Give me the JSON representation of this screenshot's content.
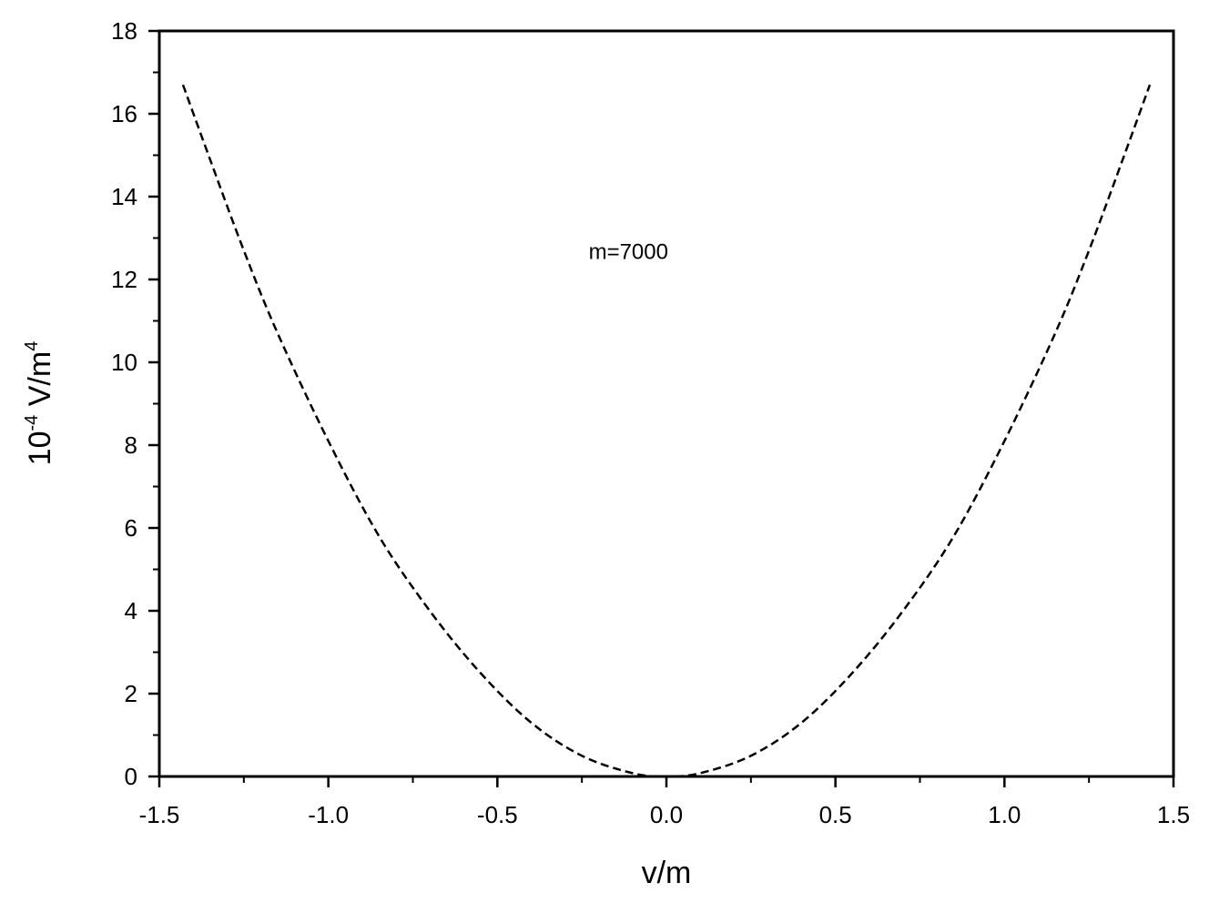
{
  "chart_data": {
    "type": "line",
    "title": "",
    "xlabel": "v/m",
    "ylabel": {
      "prefix": "10",
      "prefix_sup": "-4",
      "main": " V/m",
      "main_sup": "4"
    },
    "xlim": [
      -1.5,
      1.5
    ],
    "ylim": [
      0,
      18
    ],
    "x_major_ticks": [
      -1.5,
      -1.0,
      -0.5,
      0.0,
      0.5,
      1.0,
      1.5
    ],
    "x_tick_labels": [
      "-1.5",
      "-1.0",
      "-0.5",
      "0.0",
      "0.5",
      "1.0",
      "1.5"
    ],
    "x_minor_step": 0.25,
    "y_major_ticks": [
      0,
      2,
      4,
      6,
      8,
      10,
      12,
      14,
      16,
      18
    ],
    "y_tick_labels": [
      "0",
      "2",
      "4",
      "6",
      "8",
      "10",
      "12",
      "14",
      "16",
      "18"
    ],
    "y_minor_step": 1,
    "grid": false,
    "annotation": {
      "text": "m=7000",
      "x": -0.23,
      "y": 12.5
    },
    "series": [
      {
        "style": "dashed",
        "color": "#000000",
        "x": [
          -1.43,
          -1.35,
          -1.25,
          -1.15,
          -1.0,
          -0.85,
          -0.7,
          -0.55,
          -0.4,
          -0.25,
          -0.1,
          0.0,
          0.1,
          0.25,
          0.4,
          0.55,
          0.7,
          0.85,
          1.0,
          1.15,
          1.25,
          1.35,
          1.43
        ],
        "y": [
          16.7,
          14.9,
          12.7,
          10.7,
          8.1,
          5.8,
          4.0,
          2.5,
          1.3,
          0.5,
          0.08,
          0.0,
          0.08,
          0.5,
          1.3,
          2.5,
          4.0,
          5.8,
          8.1,
          10.7,
          12.7,
          14.9,
          16.7
        ]
      }
    ]
  }
}
